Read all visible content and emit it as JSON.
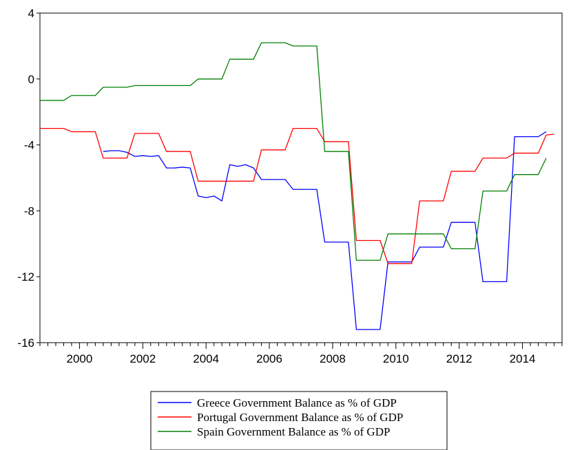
{
  "chart_data": {
    "type": "line",
    "title": "",
    "xlabel": "",
    "ylabel": "",
    "xlim": [
      1998.75,
      2015.25
    ],
    "ylim": [
      -16,
      4
    ],
    "y_ticks": [
      4,
      0,
      -4,
      -8,
      -12,
      -16
    ],
    "y_tick_labels": [
      "4",
      "0",
      "-4",
      "-8",
      "-12",
      "-16"
    ],
    "x_ticks": [
      2000,
      2002,
      2004,
      2006,
      2008,
      2010,
      2012,
      2014
    ],
    "x_tick_labels": [
      "2000",
      "2002",
      "2004",
      "2006",
      "2008",
      "2010",
      "2012",
      "2014"
    ],
    "grid": false,
    "legend_position": "bottom-center",
    "series": [
      {
        "name": "Greece Government Balance as % of GDP",
        "color": "#0000ff",
        "points": [
          [
            2000.75,
            -4.4
          ],
          [
            2001.0,
            -4.35
          ],
          [
            2001.25,
            -4.35
          ],
          [
            2001.5,
            -4.45
          ],
          [
            2001.75,
            -4.7
          ],
          [
            2002.0,
            -4.65
          ],
          [
            2002.25,
            -4.7
          ],
          [
            2002.5,
            -4.65
          ],
          [
            2002.75,
            -5.4
          ],
          [
            2003.0,
            -5.4
          ],
          [
            2003.25,
            -5.35
          ],
          [
            2003.5,
            -5.4
          ],
          [
            2003.75,
            -7.1
          ],
          [
            2004.0,
            -7.2
          ],
          [
            2004.25,
            -7.1
          ],
          [
            2004.5,
            -7.4
          ],
          [
            2004.75,
            -5.2
          ],
          [
            2005.0,
            -5.3
          ],
          [
            2005.25,
            -5.2
          ],
          [
            2005.5,
            -5.4
          ],
          [
            2005.75,
            -6.1
          ],
          [
            2006.0,
            -6.1
          ],
          [
            2006.25,
            -6.1
          ],
          [
            2006.5,
            -6.1
          ],
          [
            2006.75,
            -6.7
          ],
          [
            2007.0,
            -6.7
          ],
          [
            2007.25,
            -6.7
          ],
          [
            2007.5,
            -6.7
          ],
          [
            2007.75,
            -9.9
          ],
          [
            2008.0,
            -9.9
          ],
          [
            2008.25,
            -9.9
          ],
          [
            2008.5,
            -9.9
          ],
          [
            2008.75,
            -15.2
          ],
          [
            2009.0,
            -15.2
          ],
          [
            2009.25,
            -15.2
          ],
          [
            2009.5,
            -15.2
          ],
          [
            2009.75,
            -11.1
          ],
          [
            2010.0,
            -11.1
          ],
          [
            2010.25,
            -11.1
          ],
          [
            2010.5,
            -11.1
          ],
          [
            2010.75,
            -10.2
          ],
          [
            2011.0,
            -10.2
          ],
          [
            2011.25,
            -10.2
          ],
          [
            2011.5,
            -10.2
          ],
          [
            2011.75,
            -8.7
          ],
          [
            2012.0,
            -8.7
          ],
          [
            2012.25,
            -8.7
          ],
          [
            2012.5,
            -8.7
          ],
          [
            2012.75,
            -12.3
          ],
          [
            2013.0,
            -12.3
          ],
          [
            2013.25,
            -12.3
          ],
          [
            2013.5,
            -12.3
          ],
          [
            2013.75,
            -3.5
          ],
          [
            2014.0,
            -3.5
          ],
          [
            2014.25,
            -3.5
          ],
          [
            2014.5,
            -3.5
          ],
          [
            2014.75,
            -3.2
          ]
        ]
      },
      {
        "name": "Portugal Government Balance as % of GDP",
        "color": "#ff0000",
        "points": [
          [
            1998.75,
            -3.0
          ],
          [
            1999.0,
            -3.0
          ],
          [
            1999.25,
            -3.0
          ],
          [
            1999.5,
            -3.0
          ],
          [
            1999.75,
            -3.2
          ],
          [
            2000.0,
            -3.2
          ],
          [
            2000.25,
            -3.2
          ],
          [
            2000.5,
            -3.2
          ],
          [
            2000.75,
            -4.8
          ],
          [
            2001.0,
            -4.8
          ],
          [
            2001.25,
            -4.8
          ],
          [
            2001.5,
            -4.8
          ],
          [
            2001.75,
            -3.3
          ],
          [
            2002.0,
            -3.3
          ],
          [
            2002.25,
            -3.3
          ],
          [
            2002.5,
            -3.3
          ],
          [
            2002.75,
            -4.4
          ],
          [
            2003.0,
            -4.4
          ],
          [
            2003.25,
            -4.4
          ],
          [
            2003.5,
            -4.4
          ],
          [
            2003.75,
            -6.2
          ],
          [
            2004.0,
            -6.2
          ],
          [
            2004.25,
            -6.2
          ],
          [
            2004.5,
            -6.2
          ],
          [
            2004.75,
            -6.2
          ],
          [
            2005.0,
            -6.2
          ],
          [
            2005.25,
            -6.2
          ],
          [
            2005.5,
            -6.2
          ],
          [
            2005.75,
            -4.3
          ],
          [
            2006.0,
            -4.3
          ],
          [
            2006.25,
            -4.3
          ],
          [
            2006.5,
            -4.3
          ],
          [
            2006.75,
            -3.0
          ],
          [
            2007.0,
            -3.0
          ],
          [
            2007.25,
            -3.0
          ],
          [
            2007.5,
            -3.0
          ],
          [
            2007.75,
            -3.8
          ],
          [
            2008.0,
            -3.8
          ],
          [
            2008.25,
            -3.8
          ],
          [
            2008.5,
            -3.8
          ],
          [
            2008.75,
            -9.8
          ],
          [
            2009.0,
            -9.8
          ],
          [
            2009.25,
            -9.8
          ],
          [
            2009.5,
            -9.8
          ],
          [
            2009.75,
            -11.2
          ],
          [
            2010.0,
            -11.2
          ],
          [
            2010.25,
            -11.2
          ],
          [
            2010.5,
            -11.2
          ],
          [
            2010.75,
            -7.4
          ],
          [
            2011.0,
            -7.4
          ],
          [
            2011.25,
            -7.4
          ],
          [
            2011.5,
            -7.4
          ],
          [
            2011.75,
            -5.6
          ],
          [
            2012.0,
            -5.6
          ],
          [
            2012.25,
            -5.6
          ],
          [
            2012.5,
            -5.6
          ],
          [
            2012.75,
            -4.8
          ],
          [
            2013.0,
            -4.8
          ],
          [
            2013.25,
            -4.8
          ],
          [
            2013.5,
            -4.8
          ],
          [
            2013.75,
            -4.5
          ],
          [
            2014.0,
            -4.5
          ],
          [
            2014.25,
            -4.5
          ],
          [
            2014.5,
            -4.5
          ],
          [
            2014.75,
            -3.4
          ],
          [
            2015.0,
            -3.35
          ]
        ]
      },
      {
        "name": "Spain Government Balance as % of GDP",
        "color": "#008000",
        "points": [
          [
            1998.75,
            -1.3
          ],
          [
            1999.0,
            -1.3
          ],
          [
            1999.25,
            -1.3
          ],
          [
            1999.5,
            -1.3
          ],
          [
            1999.75,
            -1.0
          ],
          [
            2000.0,
            -1.0
          ],
          [
            2000.25,
            -1.0
          ],
          [
            2000.5,
            -1.0
          ],
          [
            2000.75,
            -0.5
          ],
          [
            2001.0,
            -0.5
          ],
          [
            2001.25,
            -0.5
          ],
          [
            2001.5,
            -0.5
          ],
          [
            2001.75,
            -0.4
          ],
          [
            2002.0,
            -0.4
          ],
          [
            2002.25,
            -0.4
          ],
          [
            2002.5,
            -0.4
          ],
          [
            2002.75,
            -0.4
          ],
          [
            2003.0,
            -0.4
          ],
          [
            2003.25,
            -0.4
          ],
          [
            2003.5,
            -0.4
          ],
          [
            2003.75,
            0.0
          ],
          [
            2004.0,
            0.0
          ],
          [
            2004.25,
            0.0
          ],
          [
            2004.5,
            0.0
          ],
          [
            2004.75,
            1.2
          ],
          [
            2005.0,
            1.2
          ],
          [
            2005.25,
            1.2
          ],
          [
            2005.5,
            1.2
          ],
          [
            2005.75,
            2.2
          ],
          [
            2006.0,
            2.2
          ],
          [
            2006.25,
            2.2
          ],
          [
            2006.5,
            2.2
          ],
          [
            2006.75,
            2.0
          ],
          [
            2007.0,
            2.0
          ],
          [
            2007.25,
            2.0
          ],
          [
            2007.5,
            2.0
          ],
          [
            2007.75,
            -4.4
          ],
          [
            2008.0,
            -4.4
          ],
          [
            2008.25,
            -4.4
          ],
          [
            2008.5,
            -4.4
          ],
          [
            2008.75,
            -11.0
          ],
          [
            2009.0,
            -11.0
          ],
          [
            2009.25,
            -11.0
          ],
          [
            2009.5,
            -11.0
          ],
          [
            2009.75,
            -9.4
          ],
          [
            2010.0,
            -9.4
          ],
          [
            2010.25,
            -9.4
          ],
          [
            2010.5,
            -9.4
          ],
          [
            2010.75,
            -9.4
          ],
          [
            2011.0,
            -9.4
          ],
          [
            2011.25,
            -9.4
          ],
          [
            2011.5,
            -9.4
          ],
          [
            2011.75,
            -10.3
          ],
          [
            2012.0,
            -10.3
          ],
          [
            2012.25,
            -10.3
          ],
          [
            2012.5,
            -10.3
          ],
          [
            2012.75,
            -6.8
          ],
          [
            2013.0,
            -6.8
          ],
          [
            2013.25,
            -6.8
          ],
          [
            2013.5,
            -6.8
          ],
          [
            2013.75,
            -5.8
          ],
          [
            2014.0,
            -5.8
          ],
          [
            2014.25,
            -5.8
          ],
          [
            2014.5,
            -5.8
          ],
          [
            2014.75,
            -4.8
          ]
        ]
      }
    ]
  }
}
